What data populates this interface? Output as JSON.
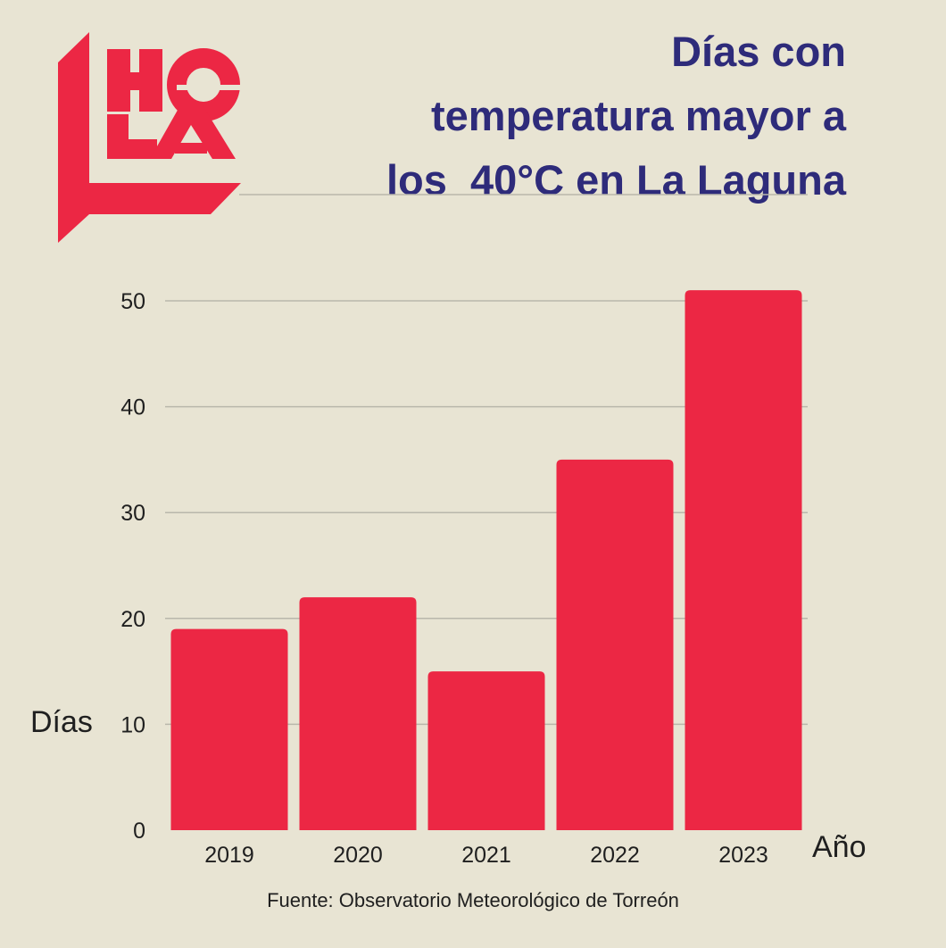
{
  "logo": {
    "text": "HOLA",
    "color": "#ec2744"
  },
  "title_lines": [
    "Días con",
    "temperatura mayor a",
    "los  40°C en La Laguna"
  ],
  "source": "Fuente: Observatorio Meteorológico de Torreón",
  "colors": {
    "bar": "#ec2744",
    "title": "#2e2b7a",
    "grid": "#b9b7ab",
    "background": "#e8e4d3"
  },
  "chart_data": {
    "type": "bar",
    "title": "Días con temperatura mayor a los 40°C en La Laguna",
    "categories": [
      "2019",
      "2020",
      "2021",
      "2022",
      "2023"
    ],
    "values": [
      19,
      22,
      15,
      35,
      51
    ],
    "xlabel": "Año",
    "ylabel": "Días",
    "ylim": [
      0,
      50
    ],
    "yticks": [
      0,
      10,
      20,
      30,
      40,
      50
    ],
    "grid": true,
    "legend": "none"
  }
}
